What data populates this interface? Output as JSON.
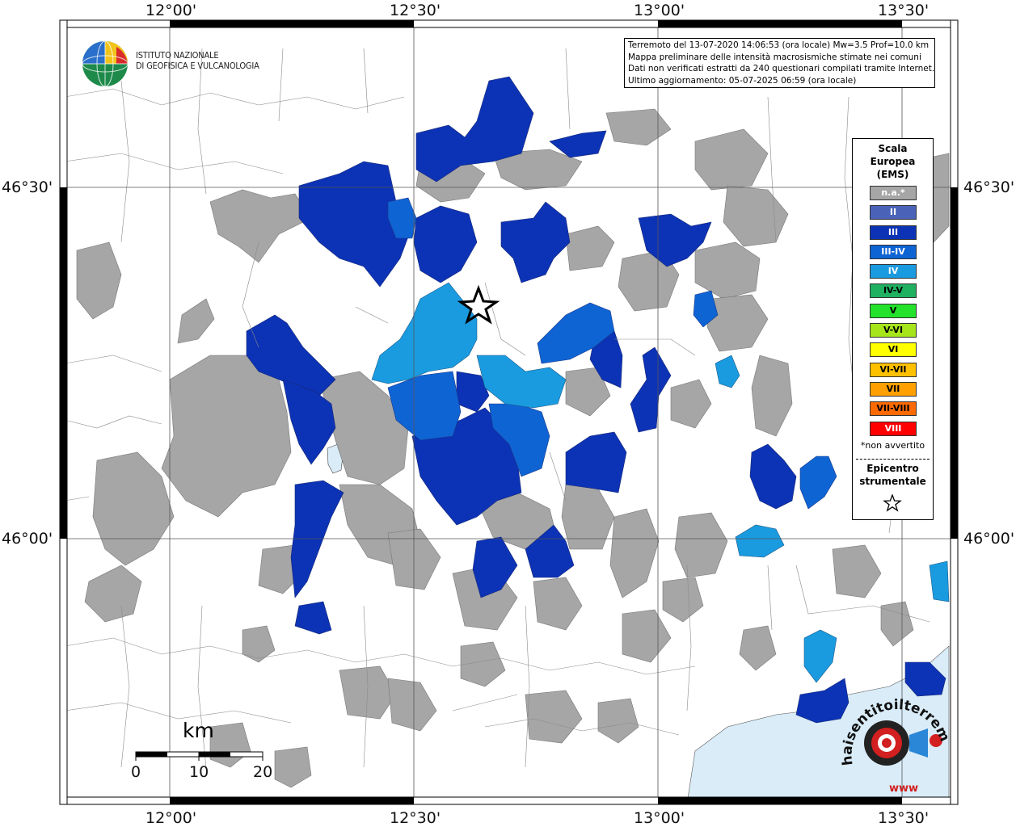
{
  "header": {
    "institute_line1": "ISTITUTO NAZIONALE",
    "institute_line2": "DI GEOFISICA E VULCANOLOGIA"
  },
  "info": {
    "line1": "Terremoto del 13-07-2020 14:06:53 (ora locale) Mw=3.5 Prof=10.0 km",
    "line2": "Mappa preliminare delle intensità macrosismiche stimate nei comuni",
    "line3": "Dati non verificati estratti da 240 questionari compilati tramite Internet.",
    "line4": "Ultimo aggiornamento: 05-07-2025 06:59 (ora locale)"
  },
  "axes": {
    "lon_top": [
      "12°00'",
      "12°30'",
      "13°00'",
      "13°30'"
    ],
    "lon_bottom": [
      "12°00'",
      "12°30'",
      "13°00'",
      "13°30'"
    ],
    "lat_left": [
      "46°30'",
      "46°00'"
    ],
    "lat_right": [
      "46°30'",
      "46°00'"
    ]
  },
  "legend": {
    "title_lines": [
      "Scala",
      "Europea",
      "(EMS)"
    ],
    "items": [
      {
        "label": "n.a.*",
        "color": "#a6a6a6"
      },
      {
        "label": "II",
        "color": "#4a63b8"
      },
      {
        "label": "III",
        "color": "#0c33b5"
      },
      {
        "label": "III-IV",
        "color": "#0f64d4"
      },
      {
        "label": "IV",
        "color": "#1a9be0"
      },
      {
        "label": "IV-V",
        "color": "#1fb060"
      },
      {
        "label": "V",
        "color": "#22e22b"
      },
      {
        "label": "V-VI",
        "color": "#a6e51a"
      },
      {
        "label": "VI",
        "color": "#ffff00"
      },
      {
        "label": "VI-VII",
        "color": "#ffc000"
      },
      {
        "label": "VII",
        "color": "#ffa000"
      },
      {
        "label": "VII-VIII",
        "color": "#ff6a00"
      },
      {
        "label": "VIII",
        "color": "#ff0000"
      }
    ],
    "note": "*non avvertito",
    "epicenter_line1": "Epicentro",
    "epicenter_line2": "strumentale"
  },
  "scalebar": {
    "unit": "km",
    "ticks": [
      "0",
      "10",
      "20"
    ]
  },
  "brand": {
    "text": "haisentitoilterremoto.it?",
    "url": "www"
  },
  "map_colors": {
    "na": "#a6a6a6",
    "iii": "#0c33b5",
    "iii_iv": "#0f64d4",
    "iv": "#1a9be0",
    "sea": "#d9ecf8"
  }
}
